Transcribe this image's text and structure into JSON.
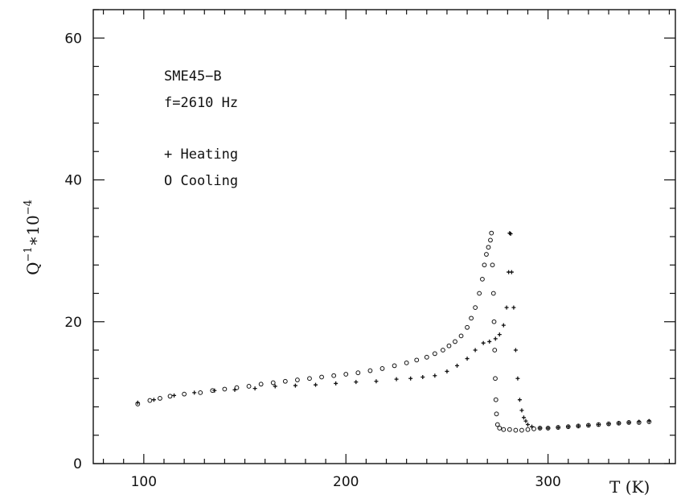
{
  "chart_data": {
    "type": "scatter",
    "title": "",
    "xlabel": "T (K)",
    "ylabel_base": "Q",
    "ylabel_sup1": "−1",
    "ylabel_mid": "∗10",
    "ylabel_sup2": "−4",
    "xlim": [
      75,
      363
    ],
    "ylim": [
      0,
      64
    ],
    "x_ticks": [
      100,
      200,
      300
    ],
    "y_ticks": [
      0,
      20,
      40,
      60
    ],
    "x_minor_step": 10,
    "y_minor_step": 4,
    "grid": false,
    "annotations": {
      "sample": "SME45−B",
      "frequency": "f=2610 Hz"
    },
    "legend_position": "top-left",
    "series": [
      {
        "name": "Heating",
        "marker": "plus",
        "legend_label": "+ Heating",
        "points": [
          [
            97,
            8.6
          ],
          [
            105,
            9.0
          ],
          [
            115,
            9.6
          ],
          [
            125,
            10.0
          ],
          [
            135,
            10.3
          ],
          [
            145,
            10.4
          ],
          [
            155,
            10.6
          ],
          [
            165,
            10.9
          ],
          [
            175,
            11.0
          ],
          [
            185,
            11.1
          ],
          [
            195,
            11.3
          ],
          [
            205,
            11.5
          ],
          [
            215,
            11.6
          ],
          [
            225,
            11.9
          ],
          [
            232,
            12.0
          ],
          [
            238,
            12.2
          ],
          [
            244,
            12.4
          ],
          [
            250,
            13.0
          ],
          [
            255,
            13.8
          ],
          [
            260,
            14.8
          ],
          [
            264,
            16.0
          ],
          [
            268,
            17.0
          ],
          [
            271,
            17.2
          ],
          [
            274,
            17.6
          ],
          [
            276,
            18.2
          ],
          [
            278,
            19.5
          ],
          [
            279.5,
            22.0
          ],
          [
            280.5,
            27.0
          ],
          [
            281,
            32.5
          ],
          [
            281.5,
            32.4
          ],
          [
            282,
            27.0
          ],
          [
            283,
            22.0
          ],
          [
            284,
            16.0
          ],
          [
            285,
            12.0
          ],
          [
            286,
            9.0
          ],
          [
            287,
            7.5
          ],
          [
            288,
            6.5
          ],
          [
            289,
            6.0
          ],
          [
            290,
            5.5
          ],
          [
            292,
            5.2
          ],
          [
            296,
            5.0
          ],
          [
            300,
            5.0
          ],
          [
            305,
            5.1
          ],
          [
            310,
            5.2
          ],
          [
            315,
            5.3
          ],
          [
            320,
            5.4
          ],
          [
            325,
            5.5
          ],
          [
            330,
            5.6
          ],
          [
            335,
            5.7
          ],
          [
            340,
            5.8
          ],
          [
            345,
            5.9
          ],
          [
            350,
            6.0
          ]
        ]
      },
      {
        "name": "Cooling",
        "marker": "circle",
        "legend_label": "O Cooling",
        "points": [
          [
            97,
            8.4
          ],
          [
            103,
            8.9
          ],
          [
            108,
            9.2
          ],
          [
            113,
            9.5
          ],
          [
            120,
            9.8
          ],
          [
            128,
            10.0
          ],
          [
            134,
            10.3
          ],
          [
            140,
            10.5
          ],
          [
            146,
            10.7
          ],
          [
            152,
            10.9
          ],
          [
            158,
            11.2
          ],
          [
            164,
            11.4
          ],
          [
            170,
            11.6
          ],
          [
            176,
            11.8
          ],
          [
            182,
            12.0
          ],
          [
            188,
            12.2
          ],
          [
            194,
            12.4
          ],
          [
            200,
            12.6
          ],
          [
            206,
            12.8
          ],
          [
            212,
            13.1
          ],
          [
            218,
            13.4
          ],
          [
            224,
            13.8
          ],
          [
            230,
            14.2
          ],
          [
            235,
            14.6
          ],
          [
            240,
            15.0
          ],
          [
            244,
            15.5
          ],
          [
            248,
            16.0
          ],
          [
            251,
            16.6
          ],
          [
            254,
            17.2
          ],
          [
            257,
            18.0
          ],
          [
            260,
            19.2
          ],
          [
            262,
            20.5
          ],
          [
            264,
            22.0
          ],
          [
            266,
            24.0
          ],
          [
            267.5,
            26.0
          ],
          [
            268.5,
            28.0
          ],
          [
            269.5,
            29.5
          ],
          [
            270.5,
            30.5
          ],
          [
            271.5,
            31.5
          ],
          [
            272,
            32.5
          ],
          [
            272.5,
            28.0
          ],
          [
            273,
            24.0
          ],
          [
            273.3,
            20.0
          ],
          [
            273.6,
            16.0
          ],
          [
            273.9,
            12.0
          ],
          [
            274.2,
            9.0
          ],
          [
            274.5,
            7.0
          ],
          [
            275,
            5.5
          ],
          [
            276,
            5.0
          ],
          [
            278,
            4.8
          ],
          [
            281,
            4.8
          ],
          [
            284,
            4.7
          ],
          [
            287,
            4.7
          ],
          [
            290,
            4.8
          ],
          [
            293,
            4.9
          ],
          [
            296,
            5.0
          ],
          [
            300,
            5.0
          ],
          [
            305,
            5.1
          ],
          [
            310,
            5.2
          ],
          [
            315,
            5.3
          ],
          [
            320,
            5.4
          ],
          [
            325,
            5.5
          ],
          [
            330,
            5.6
          ],
          [
            335,
            5.7
          ],
          [
            340,
            5.8
          ],
          [
            345,
            5.8
          ],
          [
            350,
            5.9
          ]
        ]
      }
    ]
  }
}
